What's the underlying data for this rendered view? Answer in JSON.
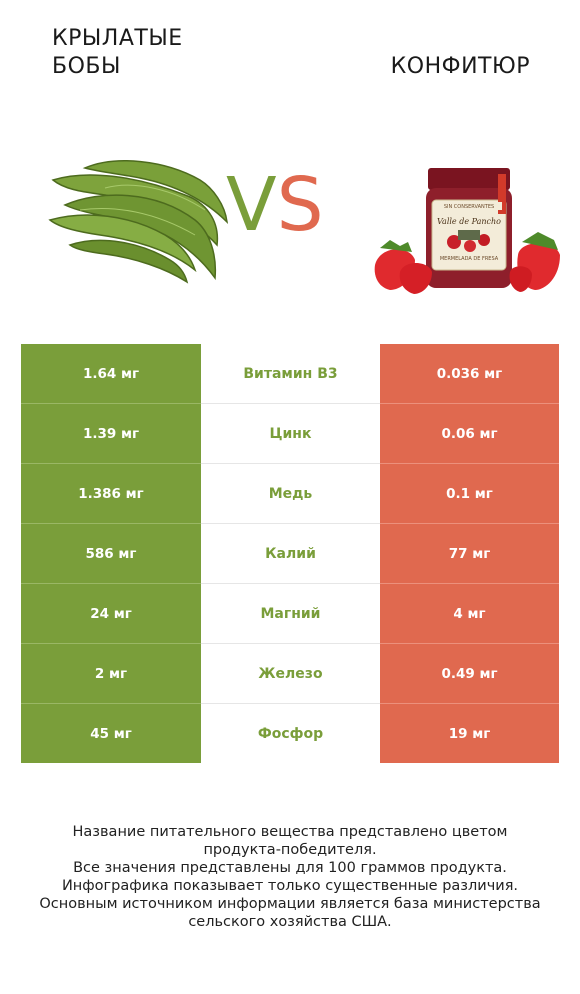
{
  "header": {
    "left_title": "Крылатые бобы",
    "right_title": "Конфитюр",
    "vs_v": "V",
    "vs_s": "S"
  },
  "images": {
    "left": "winged-beans-photo",
    "right": "strawberry-jam-jar-photo",
    "jar_label": "Valle de Pancho",
    "jar_subtitle": "MERMELADA DE FRESA",
    "jar_top": "SIN CONSERVANTES"
  },
  "colors": {
    "left_winner": "#7a9e3a",
    "right_winner": "#e0694f"
  },
  "rows": [
    {
      "left": "1.64 мг",
      "name": "Витамин B3",
      "right": "0.036 мг"
    },
    {
      "left": "1.39 мг",
      "name": "Цинк",
      "right": "0.06 мг"
    },
    {
      "left": "1.386 мг",
      "name": "Медь",
      "right": "0.1 мг"
    },
    {
      "left": "586 мг",
      "name": "Калий",
      "right": "77 мг"
    },
    {
      "left": "24 мг",
      "name": "Магний",
      "right": "4 мг"
    },
    {
      "left": "2 мг",
      "name": "Железо",
      "right": "0.49 мг"
    },
    {
      "left": "45 мг",
      "name": "Фосфор",
      "right": "19 мг"
    }
  ],
  "footer": [
    "Название питательного вещества представлено цветом",
    "продукта-победителя.",
    "Все значения представлены для 100 граммов продукта.",
    "Инфографика показывает только существенные различия.",
    "Основным источником информации является база министерства",
    "сельского хозяйства США."
  ]
}
